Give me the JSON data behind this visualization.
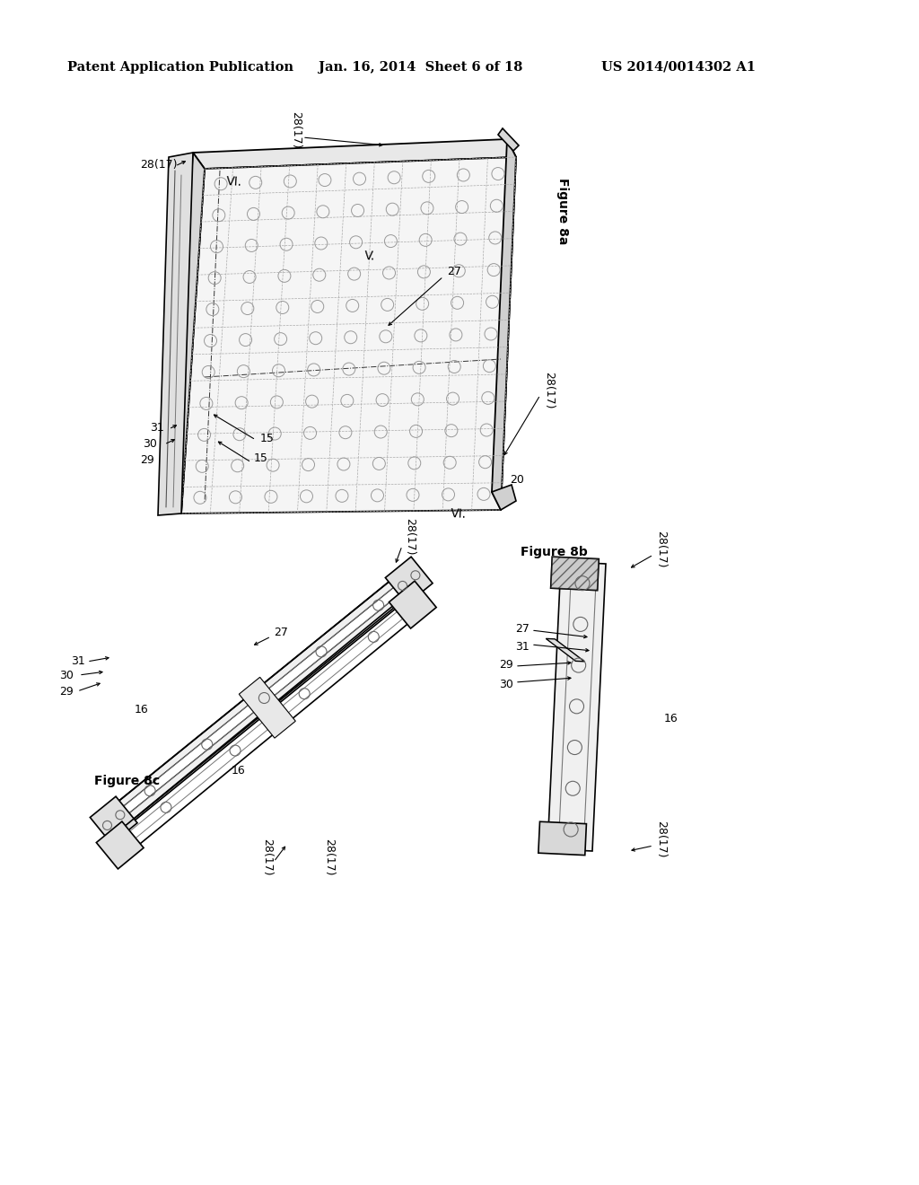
{
  "bg_color": "#ffffff",
  "header_left": "Patent Application Publication",
  "header_mid": "Jan. 16, 2014  Sheet 6 of 18",
  "header_right": "US 2014/0014302 A1",
  "fig8a_label": "Figure 8a",
  "fig8b_label": "Figure 8b",
  "fig8c_label": "Figure 8c",
  "line_color": "#000000",
  "dash_color": "#888888",
  "fill_light": "#f2f2f2",
  "fill_mid": "#e0e0e0",
  "fill_dark": "#cccccc",
  "fill_hatch": "#d8d8d8"
}
